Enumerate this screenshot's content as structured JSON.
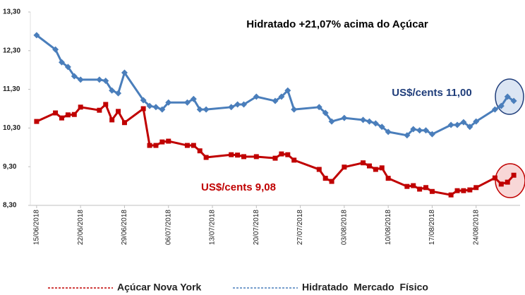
{
  "chart_data": {
    "type": "line",
    "annotations": [
      {
        "text": "Hidratado +21,07% acima do Açúcar",
        "color": "#000000"
      },
      {
        "text": "US$/cents  11,00",
        "color": "#1f3d7a"
      },
      {
        "text": "US$/cents  9,08",
        "color": "#c00000"
      }
    ],
    "x": [
      "15/06/2018",
      "18/06/2018",
      "19/06/2018",
      "20/06/2018",
      "21/06/2018",
      "22/06/2018",
      "25/06/2018",
      "26/06/2018",
      "27/06/2018",
      "28/06/2018",
      "29/06/2018",
      "02/07/2018",
      "03/07/2018",
      "04/07/2018",
      "05/07/2018",
      "06/07/2018",
      "09/07/2018",
      "10/07/2018",
      "11/07/2018",
      "12/07/2018",
      "16/07/2018",
      "17/07/2018",
      "18/07/2018",
      "20/07/2018",
      "23/07/2018",
      "24/07/2018",
      "25/07/2018",
      "26/07/2018",
      "30/07/2018",
      "31/07/2018",
      "01/08/2018",
      "03/08/2018",
      "06/08/2018",
      "07/08/2018",
      "08/08/2018",
      "09/08/2018",
      "10/08/2018",
      "13/08/2018",
      "14/08/2018",
      "15/08/2018",
      "16/08/2018",
      "17/08/2018",
      "20/08/2018",
      "21/08/2018",
      "22/08/2018",
      "23/08/2018",
      "24/08/2018",
      "27/08/2018",
      "28/08/2018",
      "29/08/2018",
      "30/08/2018"
    ],
    "series": [
      {
        "name": "Açúcar Nova York",
        "color": "#c00000",
        "marker": "square",
        "values": [
          10.47,
          10.69,
          10.56,
          10.64,
          10.65,
          10.84,
          10.76,
          10.91,
          10.51,
          10.73,
          10.44,
          10.8,
          9.85,
          9.85,
          9.94,
          9.96,
          9.85,
          9.85,
          9.71,
          9.54,
          9.61,
          9.6,
          9.56,
          9.56,
          9.52,
          9.63,
          9.61,
          9.47,
          9.23,
          9.0,
          8.92,
          9.29,
          9.4,
          9.32,
          9.23,
          9.27,
          9.0,
          8.79,
          8.81,
          8.72,
          8.76,
          8.66,
          8.57,
          8.68,
          8.68,
          8.7,
          8.76,
          9.01,
          8.85,
          8.9,
          9.08
        ]
      },
      {
        "name": "Hidratado  Mercado  Físico",
        "color": "#4a7ebb",
        "marker": "diamond",
        "values": [
          12.7,
          12.33,
          12.0,
          11.88,
          11.64,
          11.55,
          11.55,
          11.52,
          11.27,
          11.2,
          11.73,
          11.02,
          10.87,
          10.84,
          10.78,
          10.96,
          10.96,
          11.05,
          10.78,
          10.78,
          10.84,
          10.91,
          10.91,
          11.11,
          11.0,
          11.11,
          11.27,
          10.78,
          10.84,
          10.69,
          10.47,
          10.56,
          10.51,
          10.47,
          10.42,
          10.33,
          10.2,
          10.11,
          10.27,
          10.24,
          10.24,
          10.14,
          10.38,
          10.38,
          10.45,
          10.33,
          10.47,
          10.78,
          10.87,
          11.11,
          11.0
        ]
      }
    ],
    "xlim": [
      "14/06/2018",
      "31/08/2018"
    ],
    "xticks": [
      "15/06/2018",
      "22/06/2018",
      "29/06/2018",
      "06/07/2018",
      "13/07/2018",
      "20/07/2018",
      "27/07/2018",
      "03/08/2018",
      "10/08/2018",
      "17/08/2018",
      "24/08/2018"
    ],
    "ylim": [
      8.3,
      13.3
    ],
    "yticks": [
      {
        "value": 8.3,
        "label": "8,30"
      },
      {
        "value": 9.3,
        "label": "9,30"
      },
      {
        "value": 10.3,
        "label": "10,30"
      },
      {
        "value": 11.3,
        "label": "11,30"
      },
      {
        "value": 12.3,
        "label": "12,30"
      },
      {
        "value": 13.3,
        "label": "13,30"
      }
    ],
    "grid": false,
    "legend": "bottom"
  }
}
